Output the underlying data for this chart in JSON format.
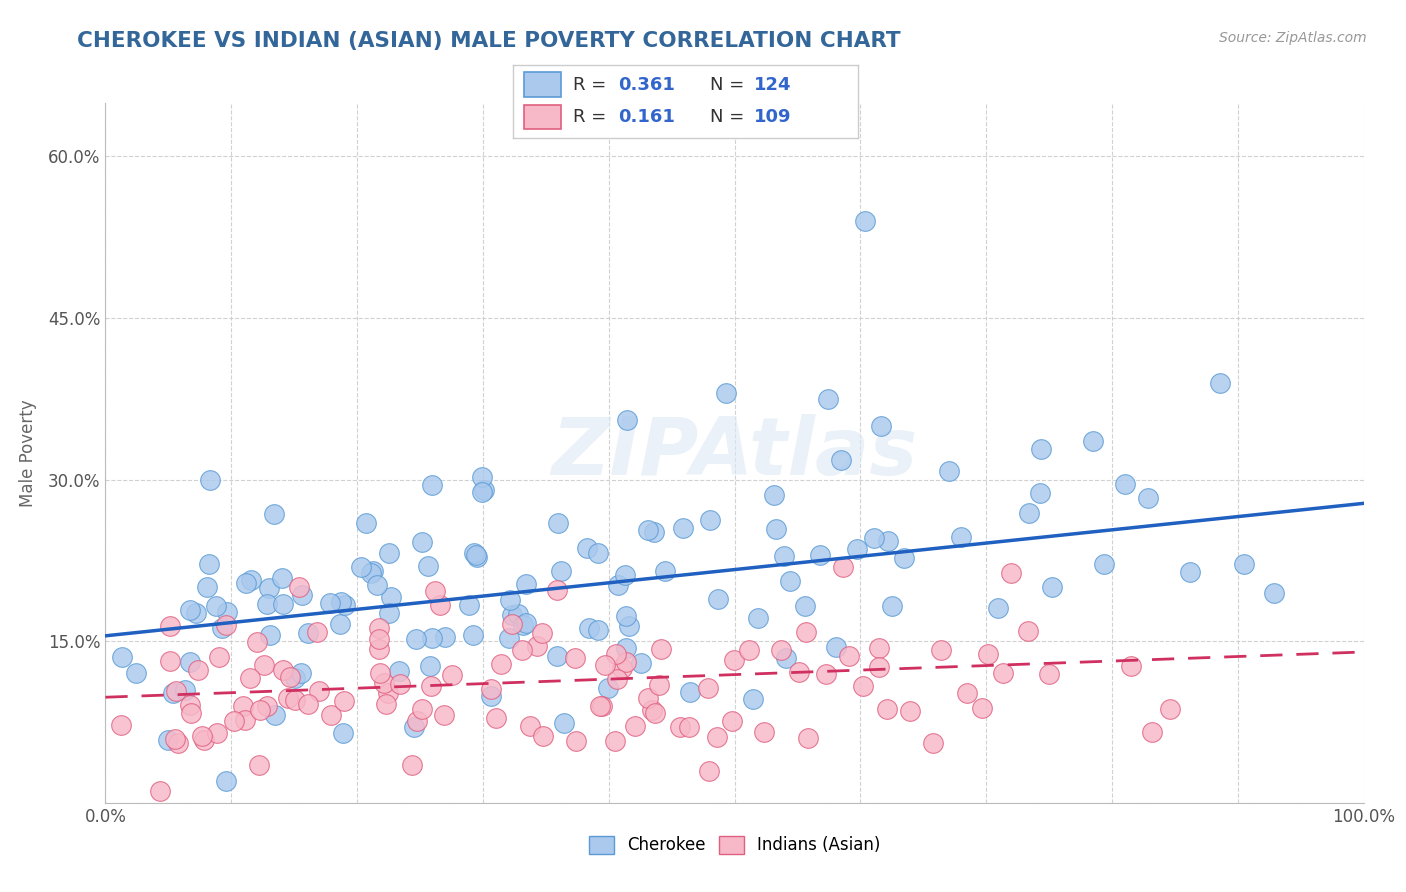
{
  "title": "CHEROKEE VS INDIAN (ASIAN) MALE POVERTY CORRELATION CHART",
  "source": "Source: ZipAtlas.com",
  "ylabel": "Male Poverty",
  "xlim": [
    0,
    1
  ],
  "ylim": [
    0,
    0.65
  ],
  "xticks": [
    0.0,
    0.1,
    0.2,
    0.3,
    0.4,
    0.5,
    0.6,
    0.7,
    0.8,
    0.9,
    1.0
  ],
  "xticklabels": [
    "0.0%",
    "",
    "",
    "",
    "",
    "",
    "",
    "",
    "",
    "",
    "100.0%"
  ],
  "yticks": [
    0.0,
    0.15,
    0.3,
    0.45,
    0.6
  ],
  "yticklabels": [
    "",
    "15.0%",
    "30.0%",
    "45.0%",
    "60.0%"
  ],
  "cherokee_color": "#aac9ed",
  "cherokee_edge": "#5B9BD5",
  "indian_color": "#f7b8c8",
  "indian_edge": "#e06080",
  "trend_cherokee": "#2060c0",
  "trend_indian": "#d03060",
  "cherokee_R": 0.361,
  "cherokee_N": 124,
  "indian_R": 0.161,
  "indian_N": 109,
  "cherokee_trend_start": 0.155,
  "cherokee_trend_end": 0.278,
  "indian_trend_start": 0.098,
  "indian_trend_end": 0.14,
  "background_color": "#ffffff",
  "grid_color": "#cccccc",
  "title_color": "#336699",
  "watermark_color": "#dde8f4",
  "watermark_alpha": 0.6,
  "seed": 12345
}
